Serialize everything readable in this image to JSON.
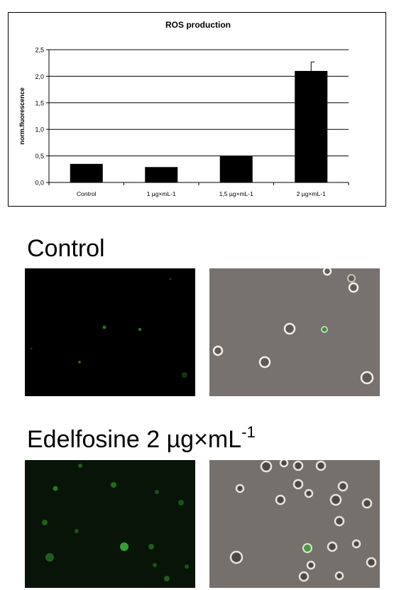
{
  "chart_data": {
    "type": "bar",
    "title": "ROS production",
    "xlabel": "",
    "ylabel": "norm.fluorescence",
    "ylim": [
      0,
      2.5
    ],
    "yticks": [
      "0,0",
      "0,5",
      "1,0",
      "1,5",
      "2,0",
      "2,5"
    ],
    "categories": [
      "Control",
      "1 µg×mL-1",
      "1,5 µg×mL-1",
      "2 µg×mL-1"
    ],
    "values": [
      0.35,
      0.29,
      0.5,
      2.1
    ],
    "error_plus": [
      0,
      0,
      0,
      0.17
    ],
    "bar_color": "#000000",
    "grid": true,
    "legend": "none"
  },
  "sections": {
    "control": {
      "title": "Control",
      "fluorescence_panel": "fluorescence-micrograph",
      "phase_panel": "phase-contrast-micrograph"
    },
    "treated": {
      "title_main": "Edelfosine 2 µg×mL",
      "title_sup": "-1",
      "fluorescence_panel": "fluorescence-micrograph",
      "phase_panel": "phase-contrast-micrograph"
    }
  },
  "colors": {
    "fluorescence_background": "#000000",
    "fluorescence_signal": "#3fae3a",
    "phase_background": "#77716f"
  }
}
